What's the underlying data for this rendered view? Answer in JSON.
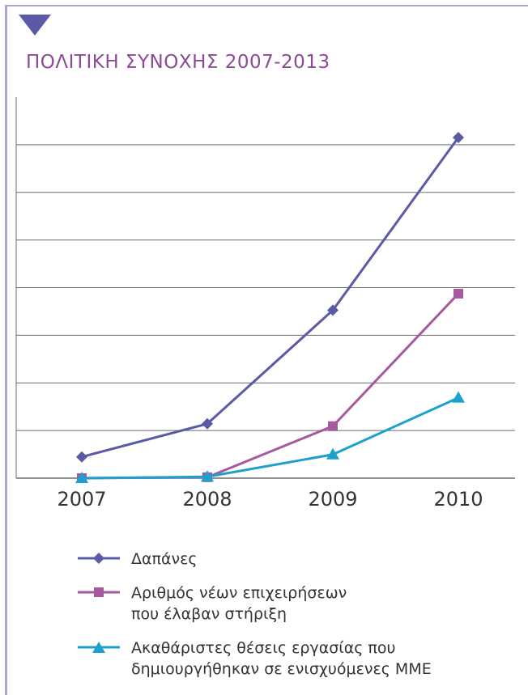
{
  "title": "ΠΟΛΙΤΙΚΗ ΣΥΝΟΧΗΣ 2007-2013",
  "colors": {
    "accent": "#8c4a96",
    "frame": "#a8a9cf",
    "marker": "#5a5aa6",
    "grid": "#6b6b6b"
  },
  "chart_data": {
    "type": "line",
    "x": [
      "2007",
      "2008",
      "2009",
      "2010"
    ],
    "ylim": [
      0,
      7.2
    ],
    "y_gridlines": 7,
    "y_tick_labels_shown": false,
    "grid": true,
    "legend_position": "bottom",
    "series": [
      {
        "name": "Δαπάνες",
        "color": "#5a5aa6",
        "marker": "diamond",
        "values": [
          0.45,
          1.15,
          3.55,
          7.2
        ]
      },
      {
        "name": "Αριθμός νέων επιχειρήσεων\nπου έλαβαν στήριξη",
        "color": "#a6599e",
        "marker": "square",
        "values": [
          0.0,
          0.02,
          1.1,
          3.9
        ]
      },
      {
        "name": "Ακαθάριστες θέσεις εργασίας που\nδημιουργήθηκαν σε ενισχυόμενες ΜΜΕ",
        "color": "#1ea0cf",
        "marker": "triangle",
        "values": [
          0.0,
          0.03,
          0.5,
          1.7
        ]
      }
    ]
  }
}
